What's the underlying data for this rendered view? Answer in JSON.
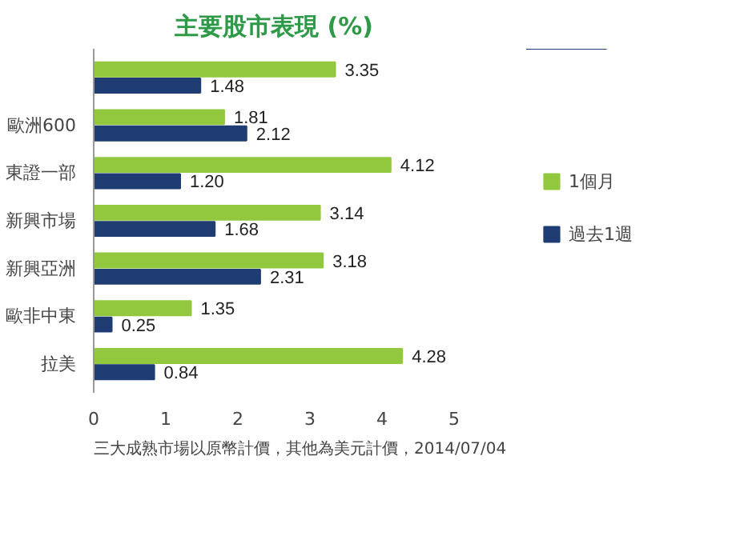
{
  "chart_data": {
    "type": "bar",
    "orientation": "horizontal",
    "title": "主要股市表現 (%)",
    "categories": [
      null,
      "歐洲600",
      "東證一部",
      "新興市場",
      "新興亞洲",
      "歐非中東",
      "拉美"
    ],
    "series": [
      {
        "name": "1個月",
        "color": "#92c83e",
        "values": [
          3.35,
          1.81,
          4.12,
          3.14,
          3.18,
          1.35,
          4.28
        ],
        "value_labels": [
          "3.35",
          "1.81",
          "4.12",
          "3.14",
          "3.18",
          "1.35",
          "4.28"
        ]
      },
      {
        "name": "過去1週",
        "color": "#1f3d73",
        "values": [
          1.48,
          2.12,
          1.2,
          1.68,
          2.31,
          0.25,
          0.84
        ],
        "value_labels": [
          "1.48",
          "2.12",
          "1.20",
          "1.68",
          "2.31",
          "0.25",
          "0.84"
        ]
      }
    ],
    "xlim": [
      0,
      5
    ],
    "xticks": [
      0,
      1,
      2,
      3,
      4,
      5
    ],
    "grid": false,
    "legend": "right",
    "data_labels": true,
    "annotations": [
      "三大成熟市場以原幣計價，其他為美元計價，2014/07/04"
    ]
  }
}
